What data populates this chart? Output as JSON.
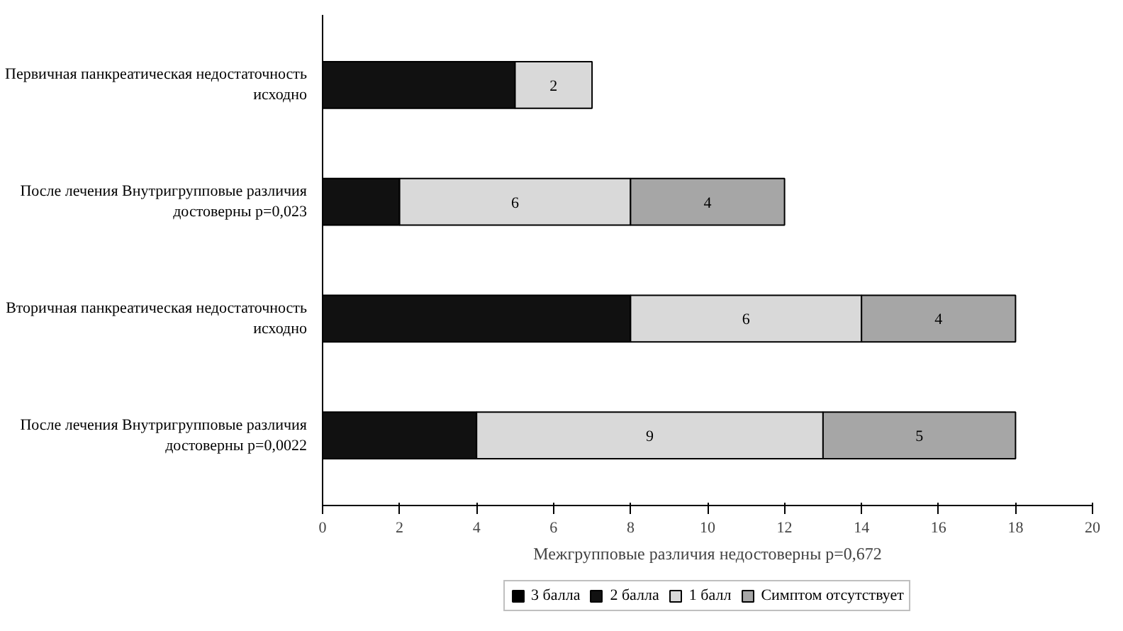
{
  "chart_data": {
    "type": "bar",
    "orientation": "horizontal",
    "stacked": true,
    "categories": [
      "Первичная панкреатическая недостаточность исходно",
      "После лечения Внутригрупповые различия достоверны p=0,023",
      "Вторичная панкреатическая недостаточность исходно",
      "После лечения Внутригрупповые различия достоверны p=0,0022"
    ],
    "series": [
      {
        "name": "3 балла",
        "color": "#000000",
        "values": [
          null,
          null,
          null,
          null
        ]
      },
      {
        "name": "2 балла",
        "color": "#111111",
        "values": [
          5,
          2,
          8,
          4
        ]
      },
      {
        "name": "1 балл",
        "color": "#d9d9d9",
        "values": [
          2,
          6,
          6,
          9
        ],
        "value_labels": [
          "2",
          "6",
          "6",
          "9"
        ]
      },
      {
        "name": "Симптом отсутствует",
        "color": "#a6a6a6",
        "values": [
          0,
          4,
          4,
          5
        ],
        "value_labels": [
          null,
          "4",
          "4",
          "5"
        ]
      }
    ],
    "xlabel": "Межгрупповые различия недостоверны p=0,672",
    "xlim": [
      0,
      20
    ],
    "xticks": [
      0,
      2,
      4,
      6,
      8,
      10,
      12,
      14,
      16,
      18,
      20
    ],
    "legend": "bottom"
  }
}
